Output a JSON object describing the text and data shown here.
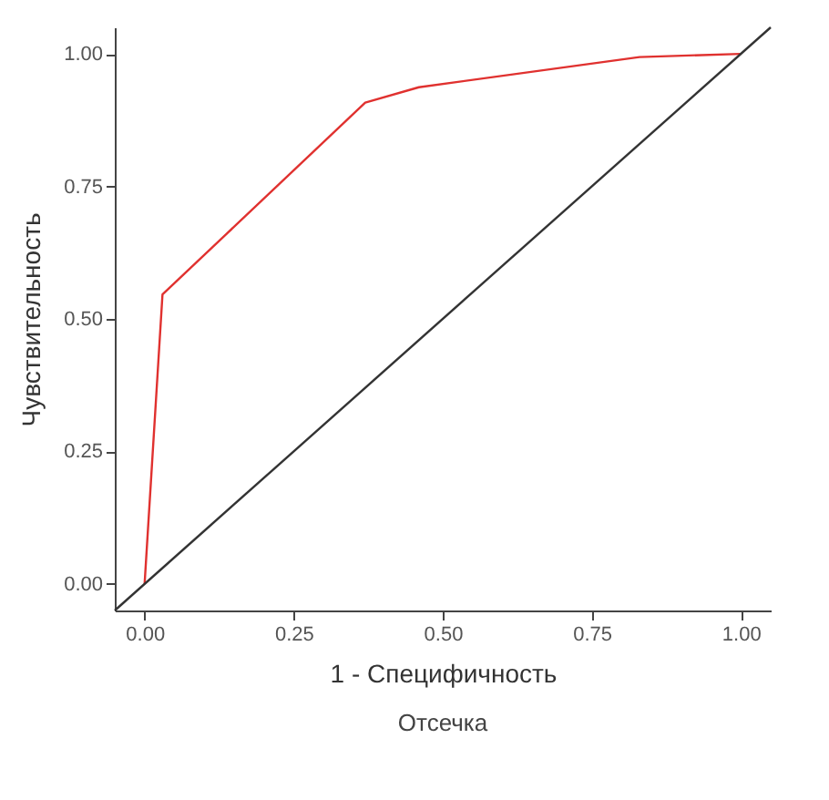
{
  "chart_data": {
    "type": "line",
    "xlabel": "1 - Специфичность",
    "ylabel": "Чувствительность",
    "annotations": [
      "Отсечка"
    ],
    "xlim": [
      -0.05,
      1.05
    ],
    "ylim": [
      -0.05,
      1.05
    ],
    "xticks": [
      {
        "value": 0,
        "label": "0.00"
      },
      0.25,
      {
        "value": 0.5,
        "label": "0.50"
      },
      0.75,
      {
        "value": 1,
        "label": "1.00"
      }
    ],
    "yticks": [
      {
        "value": 0,
        "label": "0.00"
      },
      0.25,
      {
        "value": 0.5,
        "label": "0.50"
      },
      0.75,
      {
        "value": 1,
        "label": "1.00"
      }
    ],
    "grid": false,
    "series": [
      {
        "color": "#e0312f",
        "x": [
          0,
          0.03,
          0.37,
          0.46,
          0.83,
          1
        ],
        "values": [
          0,
          0.546,
          0.908,
          0.937,
          0.994,
          1
        ]
      },
      {
        "color": "#333333",
        "x": [
          -0.05,
          1.05
        ],
        "values": [
          -0.05,
          1.05
        ]
      }
    ]
  }
}
